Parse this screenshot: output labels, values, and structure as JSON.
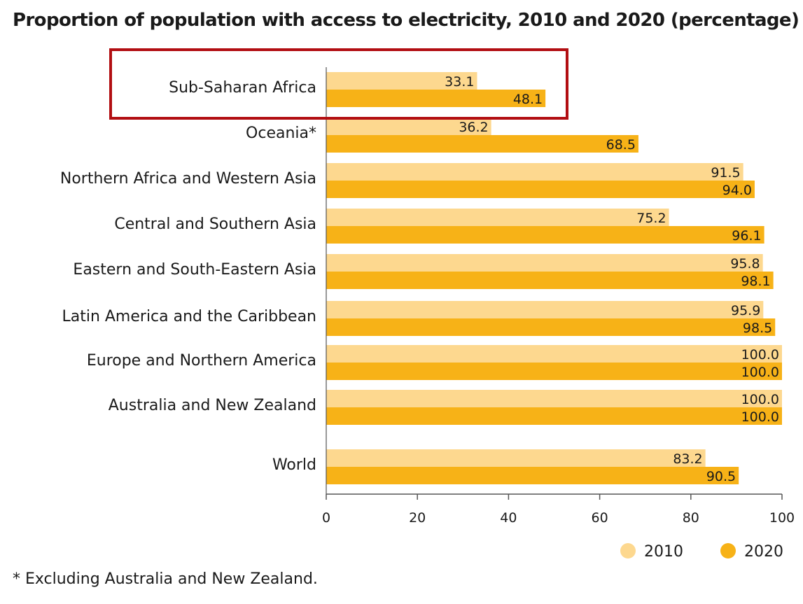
{
  "chart_data": {
    "type": "bar",
    "orientation": "horizontal",
    "title": "Proportion of population with access to electricity, 2010 and 2020 (percentage)",
    "categories": [
      "Sub-Saharan Africa",
      "Oceania*",
      "Northern Africa and Western Asia",
      "Central and Southern Asia",
      "Eastern and South-Eastern Asia",
      "Latin America and the Caribbean",
      "Europe and Northern America",
      "Australia and New Zealand",
      "World"
    ],
    "series": [
      {
        "name": "2010",
        "color": "#FDD88F",
        "values": [
          33.1,
          36.2,
          91.5,
          75.2,
          95.8,
          95.9,
          100.0,
          100.0,
          83.2
        ],
        "labels": [
          "33.1",
          "36.2",
          "91.5",
          "75.2",
          "95.8",
          "95.9",
          "100.0",
          "100.0",
          "83.2"
        ]
      },
      {
        "name": "2020",
        "color": "#F7B217",
        "values": [
          48.1,
          68.5,
          94.0,
          96.1,
          98.1,
          98.5,
          100.0,
          100.0,
          90.5
        ],
        "labels": [
          "48.1",
          "68.5",
          "94.0",
          "96.1",
          "98.1",
          "98.5",
          "100.0",
          "100.0",
          "90.5"
        ]
      }
    ],
    "xlim": [
      0,
      100
    ],
    "xticks": [
      "0",
      "20",
      "40",
      "60",
      "80",
      "100"
    ],
    "xlabel": "",
    "ylabel": "",
    "grid": false,
    "legend": "bottom-right",
    "highlighted_category": "Sub-Saharan Africa",
    "highlight_color": "#B20E12"
  },
  "footnote": "* Excluding Australia and New Zealand."
}
